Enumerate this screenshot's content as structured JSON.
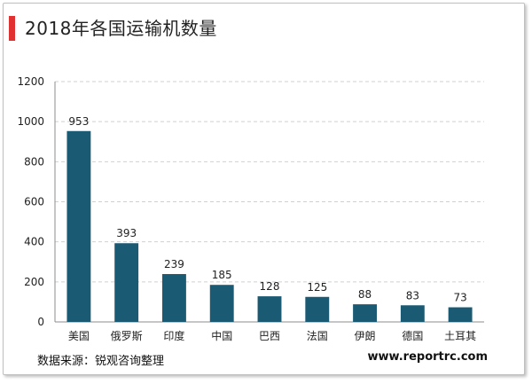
{
  "title": "2018年各国运输机数量",
  "source": "数据来源：锐观咨询整理",
  "website": "www.reportrc.com",
  "colors": {
    "bar": "#1b5a73",
    "accent": "#e03030",
    "grid": "#d0d0d0",
    "axis": "#8c8c8c"
  },
  "chart_data": {
    "type": "bar",
    "categories": [
      "美国",
      "俄罗斯",
      "印度",
      "中国",
      "巴西",
      "法国",
      "伊朗",
      "德国",
      "土耳其"
    ],
    "values": [
      953,
      393,
      239,
      185,
      128,
      125,
      88,
      83,
      73
    ],
    "yticks": [
      0,
      200,
      400,
      600,
      800,
      1000,
      1200
    ],
    "ylim": [
      0,
      1200
    ],
    "grid": true,
    "data_labels": true
  }
}
